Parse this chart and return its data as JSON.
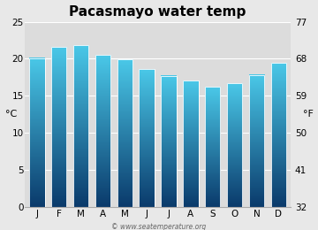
{
  "title": "Pacasmayo water temp",
  "months": [
    "J",
    "F",
    "M",
    "A",
    "M",
    "J",
    "J",
    "A",
    "S",
    "O",
    "N",
    "D"
  ],
  "values_c": [
    20.1,
    21.6,
    21.8,
    20.5,
    19.9,
    18.6,
    17.7,
    17.0,
    16.2,
    16.7,
    17.8,
    19.4
  ],
  "ylim_c": [
    0,
    25
  ],
  "yticks_c": [
    0,
    5,
    10,
    15,
    20,
    25
  ],
  "yticks_f": [
    32,
    41,
    50,
    59,
    68,
    77
  ],
  "ylabel_left": "°C",
  "ylabel_right": "°F",
  "bar_color_top": "#4ac8e8",
  "bar_color_bottom": "#0a3a6b",
  "background_color": "#e8e8e8",
  "plot_bg_color": "#dcdcdc",
  "watermark": "© www.seatemperature.org",
  "title_fontsize": 11,
  "tick_fontsize": 7.5,
  "label_fontsize": 8
}
